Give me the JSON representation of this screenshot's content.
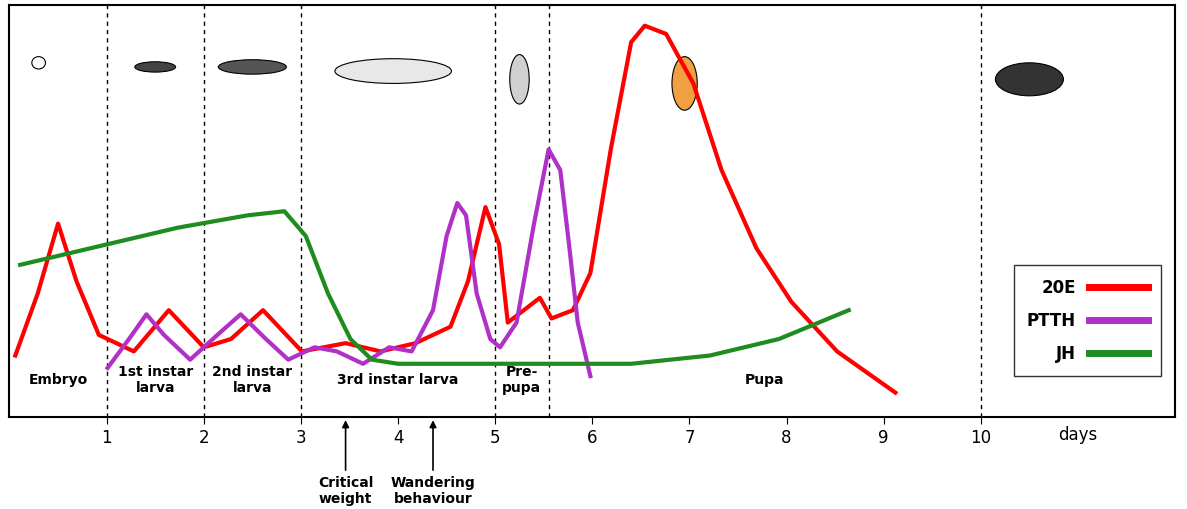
{
  "chart_data": {
    "type": "line",
    "x_label": "days",
    "xlim": [
      0,
      12
    ],
    "xticks": [
      1,
      2,
      3,
      4,
      5,
      6,
      7,
      8,
      9,
      10
    ],
    "ylim": [
      0,
      100
    ],
    "yticks": [],
    "tick_labels": "x",
    "grid": false,
    "legend": "lower right",
    "stages": [
      {
        "label": "Embryo",
        "start": 0,
        "end": 1
      },
      {
        "label": "1st instar\nlarva",
        "start": 1,
        "end": 2
      },
      {
        "label": "2nd instar\nlarva",
        "start": 2,
        "end": 3
      },
      {
        "label": "3rd instar larva",
        "start": 3,
        "end": 5
      },
      {
        "label": "Pre-\npupa",
        "start": 5,
        "end": 5.55
      },
      {
        "label": "Pupa",
        "start": 5.55,
        "end": 10
      }
    ],
    "annotations": [
      {
        "text": "Critical\nweight",
        "x": 3.46
      },
      {
        "text": "Wandering\nbehaviour",
        "x": 4.36
      }
    ],
    "series": [
      {
        "name": "20E",
        "color": "#ff0000",
        "line_style": "solid",
        "x": [
          0.06,
          0.29,
          0.5,
          0.69,
          0.92,
          1.28,
          1.64,
          2.0,
          2.28,
          2.61,
          3.01,
          3.46,
          3.82,
          4.18,
          4.54,
          4.72,
          4.9,
          5.04,
          5.13,
          5.35,
          5.46,
          5.58,
          5.8,
          5.98,
          6.19,
          6.4,
          6.54,
          6.76,
          7.04,
          7.33,
          7.69,
          8.05,
          8.52,
          9.12
        ],
        "values": [
          15,
          30,
          47,
          33,
          20,
          16,
          26,
          17,
          19,
          26,
          16,
          18,
          16,
          18,
          22,
          33,
          51,
          42,
          23,
          27,
          29,
          24,
          26,
          35,
          65,
          91,
          95,
          93,
          81,
          60,
          41,
          28,
          16,
          6
        ]
      },
      {
        "name": "PTTH",
        "color": "#b030c8",
        "line_style": "solid",
        "x": [
          1.01,
          1.23,
          1.41,
          1.59,
          1.86,
          2.14,
          2.38,
          2.64,
          2.87,
          3.14,
          3.37,
          3.64,
          3.91,
          4.14,
          4.36,
          4.5,
          4.61,
          4.7,
          4.81,
          4.95,
          5.05,
          5.22,
          5.4,
          5.55,
          5.67,
          5.76,
          5.85,
          5.98
        ],
        "values": [
          12,
          19,
          25,
          20,
          14,
          20,
          25,
          19,
          14,
          17,
          16,
          13,
          17,
          16,
          26,
          44,
          52,
          49,
          30,
          19,
          17,
          23,
          47,
          65,
          60,
          42,
          23,
          10
        ]
      },
      {
        "name": "JH",
        "color": "#1e8c1e",
        "line_style": "solid",
        "x": [
          0.11,
          0.83,
          1.73,
          2.45,
          2.83,
          3.05,
          3.28,
          3.51,
          3.73,
          4.0,
          5.35,
          6.4,
          7.21,
          7.92,
          8.64
        ],
        "values": [
          37,
          41,
          46,
          49,
          50,
          44,
          30,
          19,
          14,
          13,
          13,
          13,
          15,
          19,
          26
        ]
      }
    ]
  }
}
